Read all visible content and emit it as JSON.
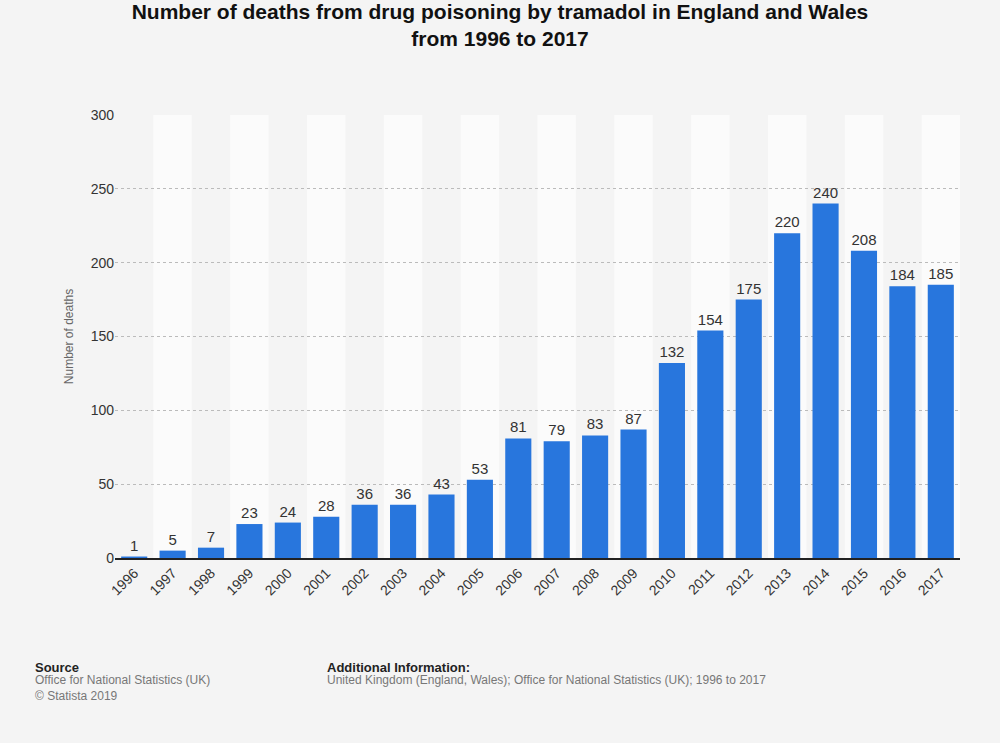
{
  "chart_data": {
    "type": "bar",
    "title": "Number of deaths from drug poisoning by tramadol in England and Wales from 1996 to 2017",
    "y_label": "Number of deaths",
    "categories": [
      "1996",
      "1997",
      "1998",
      "1999",
      "2000",
      "2001",
      "2002",
      "2003",
      "2004",
      "2005",
      "2006",
      "2007",
      "2008",
      "2009",
      "2010",
      "2011",
      "2012",
      "2013",
      "2014",
      "2015",
      "2016",
      "2017"
    ],
    "values": [
      1,
      5,
      7,
      23,
      24,
      28,
      36,
      36,
      43,
      53,
      81,
      79,
      83,
      87,
      132,
      154,
      175,
      220,
      240,
      208,
      184,
      185
    ],
    "color": "#2876dd",
    "ylim": [
      0,
      300
    ],
    "yticks": [
      0,
      50,
      100,
      150,
      200,
      250,
      300
    ],
    "grid": true,
    "data_labels": true,
    "source": {
      "heading": "Source",
      "lines": [
        "Office for National Statistics (UK)",
        "© Statista 2019"
      ]
    },
    "additional_information": {
      "heading": "Additional Information:",
      "lines": [
        "United Kingdom (England, Wales); Office for National Statistics (UK); 1996 to 2017"
      ]
    }
  }
}
